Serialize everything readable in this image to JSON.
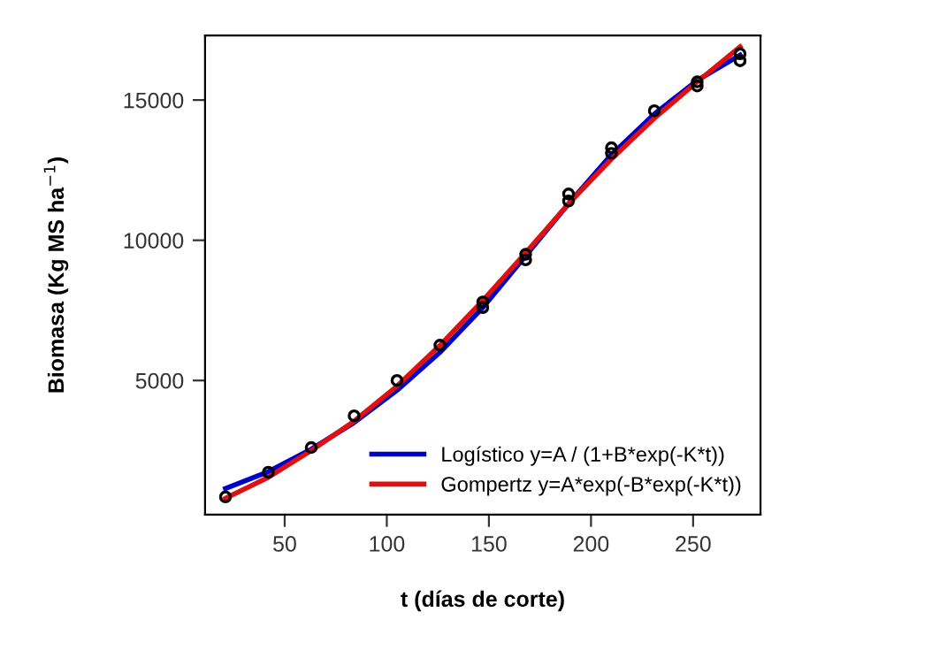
{
  "chart_data": {
    "type": "line",
    "xlabel": "t (días de corte)",
    "ylabel": "Biomasa (Kg MS ha$^{−1}$)",
    "xlim": [
      11,
      283
    ],
    "xticks": [
      50,
      100,
      150,
      200,
      250
    ],
    "ylim": [
      220,
      17300
    ],
    "yticks": [
      5000,
      10000,
      15000
    ],
    "grid": false,
    "legend": "bottom right",
    "line_style": "solid",
    "series": [
      {
        "type": "scatter",
        "color": "#000000",
        "x": [
          21,
          42,
          63,
          84,
          105,
          126,
          147,
          147,
          168,
          168,
          189,
          189,
          210,
          210,
          231,
          252,
          252,
          273,
          273
        ],
        "values": [
          850,
          1730,
          2610,
          3740,
          5000,
          6260,
          7600,
          7800,
          9300,
          9500,
          11400,
          11650,
          13100,
          13300,
          14620,
          15500,
          15650,
          16400,
          16650
        ]
      },
      {
        "name": "Logístico y=A / (1+B*exp(-K*t))",
        "color": "#0000cc",
        "x": [
          21,
          42,
          63,
          84,
          105,
          126,
          147,
          168,
          189,
          210,
          231,
          252,
          273
        ],
        "values": [
          1150,
          1750,
          2550,
          3500,
          4650,
          6000,
          7600,
          9450,
          11300,
          13050,
          14500,
          15700,
          16600
        ]
      },
      {
        "name": "Gompertz y=A*exp(-B*exp(-K*t))",
        "color": "#e01010",
        "x": [
          21,
          42,
          63,
          84,
          105,
          126,
          147,
          168,
          189,
          210,
          231,
          252,
          273
        ],
        "values": [
          800,
          1550,
          2500,
          3550,
          4800,
          6250,
          7850,
          9550,
          11300,
          12900,
          14350,
          15650,
          16900
        ]
      }
    ]
  }
}
